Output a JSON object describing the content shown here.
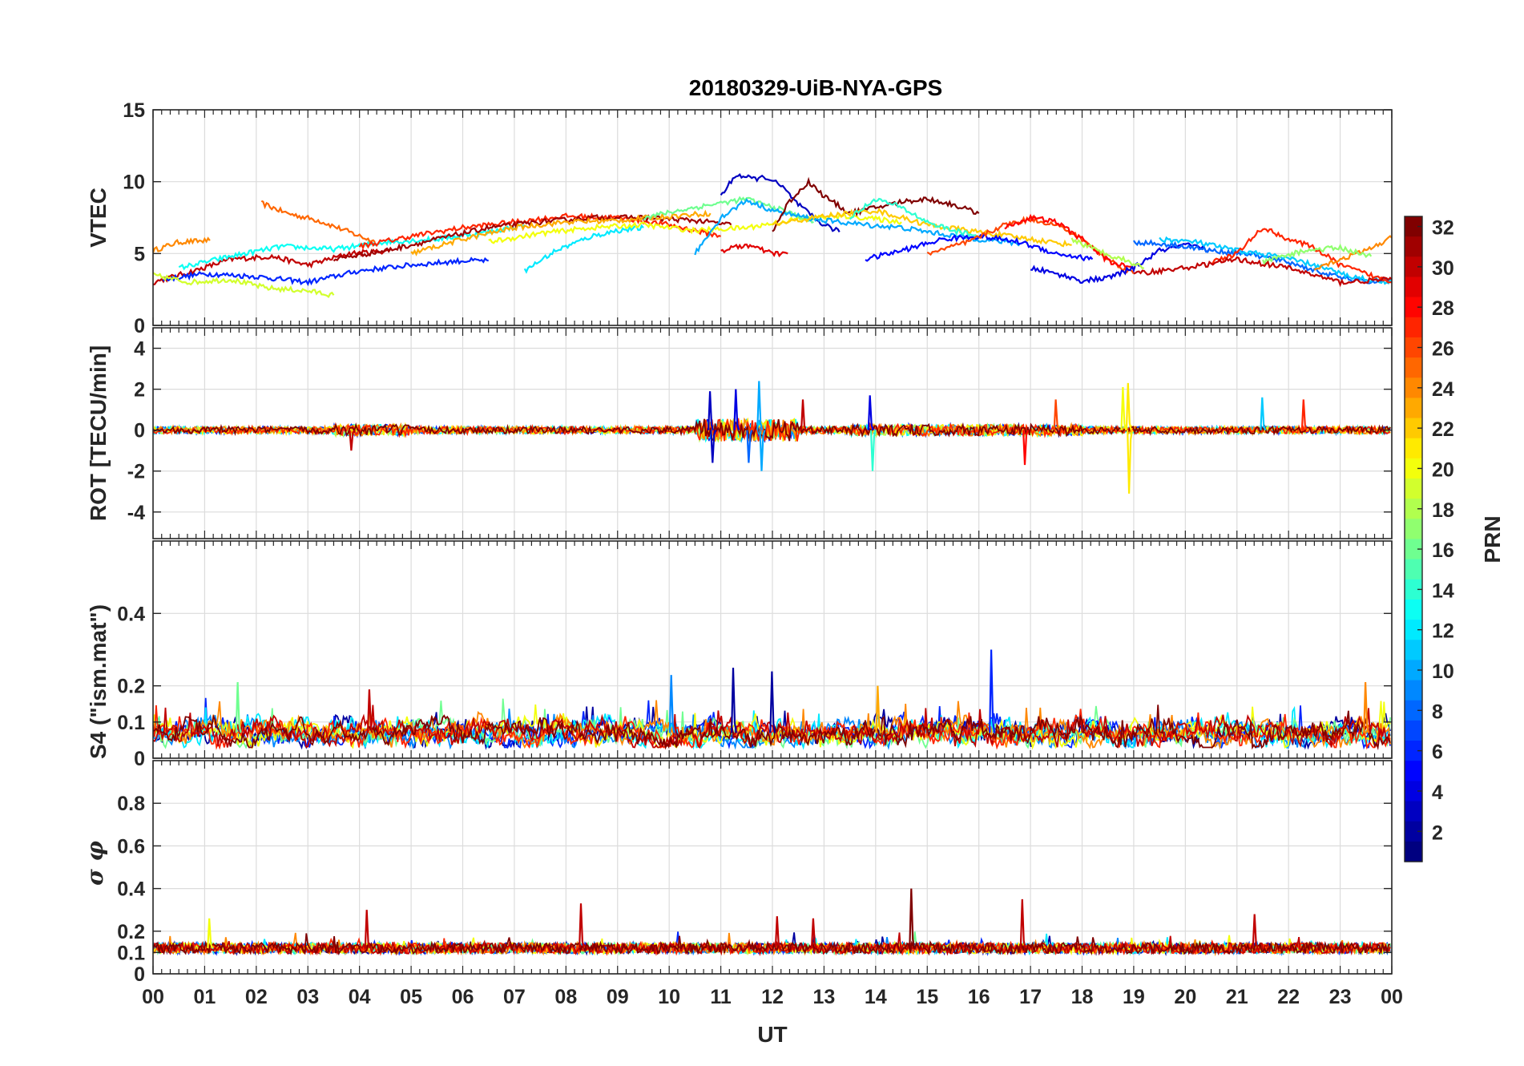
{
  "chart_data": [
    {
      "type": "line",
      "title": "20180329-UiB-NYA-GPS",
      "ylabel": "VTEC",
      "ylim": [
        0,
        15
      ],
      "yticks": [
        0,
        5,
        10,
        15
      ],
      "xlim": [
        0,
        24
      ],
      "xticks": [
        "00",
        "01",
        "02",
        "03",
        "04",
        "05",
        "06",
        "07",
        "08",
        "09",
        "10",
        "11",
        "12",
        "13",
        "14",
        "15",
        "16",
        "17",
        "18",
        "19",
        "20",
        "21",
        "22",
        "23",
        "00"
      ],
      "grid": true,
      "series_encoding": "one line per GPS satellite PRN, colored by PRN",
      "series": [
        {
          "prn": 24,
          "x": [
            0,
            0.5,
            1.1
          ],
          "y": [
            5.2,
            5.8,
            5.9
          ]
        },
        {
          "prn": 25,
          "x": [
            2.1,
            2.6,
            3.2,
            3.8,
            4.3
          ],
          "y": [
            8.5,
            7.8,
            7.3,
            6.5,
            5.8
          ]
        },
        {
          "prn": 30,
          "x": [
            0,
            0.8,
            1.5,
            2.3,
            3.0,
            3.8,
            4.6
          ],
          "y": [
            3.0,
            3.8,
            4.6,
            4.8,
            4.2,
            5.0,
            5.2
          ]
        },
        {
          "prn": 6,
          "x": [
            0.2,
            1.0,
            2.0,
            3.0,
            4.0,
            5.0,
            6.0,
            6.5
          ],
          "y": [
            3.2,
            3.6,
            3.4,
            3.0,
            3.8,
            4.2,
            4.5,
            4.5
          ]
        },
        {
          "prn": 19,
          "x": [
            0,
            0.7,
            1.5,
            2.2,
            3.0,
            3.5
          ],
          "y": [
            3.5,
            3.0,
            3.2,
            2.6,
            2.4,
            2.1
          ]
        },
        {
          "prn": 13,
          "x": [
            0.5,
            1.5,
            2.5,
            3.5,
            4.5,
            5.5,
            6.5,
            7.2
          ],
          "y": [
            4.0,
            4.8,
            5.5,
            5.3,
            5.8,
            6.0,
            6.5,
            7.0
          ]
        },
        {
          "prn": 27,
          "x": [
            4.0,
            5.0,
            6.0,
            7.0,
            8.0,
            9.0,
            10.0,
            11.0
          ],
          "y": [
            5.5,
            6.2,
            6.8,
            7.2,
            7.6,
            7.5,
            7.0,
            6.2
          ]
        },
        {
          "prn": 31,
          "x": [
            3.5,
            4.5,
            5.5,
            6.5,
            7.5,
            8.5,
            9.5,
            10.5,
            11.2
          ],
          "y": [
            4.6,
            5.2,
            6.0,
            6.8,
            7.2,
            7.5,
            7.5,
            7.3,
            7.0
          ]
        },
        {
          "prn": 23,
          "x": [
            5.0,
            6.0,
            7.0,
            8.0,
            9.0,
            10.0,
            10.8
          ],
          "y": [
            5.0,
            6.0,
            6.8,
            7.2,
            7.3,
            7.6,
            7.8
          ]
        },
        {
          "prn": 12,
          "x": [
            7.2,
            7.8,
            8.5,
            9.0,
            9.5
          ],
          "y": [
            3.8,
            5.2,
            6.2,
            6.6,
            6.8
          ]
        },
        {
          "prn": 20,
          "x": [
            6.5,
            7.5,
            8.5,
            9.5,
            10.5,
            11.5,
            12.5,
            13.5,
            14.5
          ],
          "y": [
            5.8,
            6.4,
            6.8,
            7.0,
            6.6,
            6.8,
            7.4,
            7.6,
            7.2
          ]
        },
        {
          "prn": 16,
          "x": [
            9.5,
            10.2,
            10.8,
            11.5,
            12.2,
            12.8
          ],
          "y": [
            7.5,
            8.0,
            8.4,
            8.8,
            8.0,
            7.2
          ]
        },
        {
          "prn": 3,
          "x": [
            11.0,
            11.3,
            11.6,
            11.9,
            12.2,
            12.5,
            12.9,
            13.3
          ],
          "y": [
            9.0,
            10.5,
            10.2,
            10.3,
            9.6,
            8.4,
            7.2,
            6.5
          ]
        },
        {
          "prn": 10,
          "x": [
            10.5,
            11.0,
            11.5,
            12.0,
            12.5,
            13.0,
            13.8,
            14.5,
            15.2,
            16.0,
            16.8
          ],
          "y": [
            5.0,
            7.5,
            8.7,
            8.0,
            7.6,
            7.3,
            7.0,
            6.8,
            6.4,
            6.0,
            5.7
          ]
        },
        {
          "prn": 32,
          "x": [
            12.0,
            12.3,
            12.7,
            13.0,
            13.5,
            14.0,
            14.5,
            15.0,
            15.5,
            16.0
          ],
          "y": [
            6.5,
            8.5,
            10.0,
            9.0,
            7.8,
            8.2,
            8.6,
            8.8,
            8.4,
            7.8
          ]
        },
        {
          "prn": 29,
          "x": [
            11.0,
            11.5,
            12.0,
            12.3
          ],
          "y": [
            5.2,
            5.6,
            5.0,
            5.0
          ]
        },
        {
          "prn": 22,
          "x": [
            12.0,
            13.0,
            14.0,
            15.0,
            16.0,
            17.0,
            17.8
          ],
          "y": [
            7.0,
            7.6,
            8.0,
            7.0,
            6.5,
            6.0,
            5.6
          ]
        },
        {
          "prn": 14,
          "x": [
            13.5,
            14.0,
            14.5,
            15.0,
            15.5,
            16.0
          ],
          "y": [
            7.5,
            8.8,
            8.2,
            7.2,
            6.6,
            6.2
          ]
        },
        {
          "prn": 5,
          "x": [
            13.8,
            14.5,
            15.3,
            16.0,
            16.8,
            17.5,
            18.2
          ],
          "y": [
            4.6,
            5.2,
            6.0,
            6.2,
            5.8,
            5.0,
            4.6
          ]
        },
        {
          "prn": 26,
          "x": [
            15.0,
            15.8,
            16.5,
            17.0,
            17.5,
            18.0,
            18.5,
            19.0
          ],
          "y": [
            5.0,
            5.8,
            7.0,
            7.4,
            7.0,
            6.0,
            4.6,
            3.6
          ]
        },
        {
          "prn": 28,
          "x": [
            16.5,
            17.0,
            17.5,
            18.0,
            18.5,
            19.0
          ],
          "y": [
            6.8,
            7.5,
            7.2,
            6.0,
            4.5,
            3.9
          ]
        },
        {
          "prn": 4,
          "x": [
            17.0,
            17.5,
            18.0,
            18.5,
            19.0,
            19.5,
            20.0,
            20.5
          ],
          "y": [
            4.0,
            3.6,
            3.1,
            3.3,
            4.0,
            5.2,
            5.6,
            5.2
          ]
        },
        {
          "prn": 18,
          "x": [
            17.8,
            18.3,
            18.8,
            19.2
          ],
          "y": [
            6.0,
            5.2,
            4.6,
            4.0
          ]
        },
        {
          "prn": 8,
          "x": [
            19.0,
            19.8,
            20.5,
            21.2,
            22.0,
            22.8,
            23.5,
            24.0
          ],
          "y": [
            5.8,
            5.6,
            5.2,
            5.0,
            4.4,
            3.5,
            3.0,
            3.2
          ]
        },
        {
          "prn": 11,
          "x": [
            19.5,
            20.2,
            21.0,
            21.8,
            22.5,
            23.2,
            24.0
          ],
          "y": [
            6.0,
            5.8,
            5.2,
            4.8,
            4.2,
            3.4,
            3.0
          ]
        },
        {
          "prn": 27,
          "x": [
            20.5,
            21.0,
            21.5,
            22.0,
            22.5,
            23.0,
            23.5,
            24.0
          ],
          "y": [
            4.4,
            5.0,
            6.8,
            6.0,
            5.4,
            4.2,
            3.6,
            3.0
          ]
        },
        {
          "prn": 24,
          "x": [
            22.5,
            23.0,
            23.5,
            24.0
          ],
          "y": [
            4.0,
            4.6,
            5.2,
            6.1
          ]
        },
        {
          "prn": 17,
          "x": [
            21.5,
            22.3,
            23.0,
            23.6
          ],
          "y": [
            4.4,
            5.2,
            5.4,
            4.8
          ]
        },
        {
          "prn": 30,
          "x": [
            19.0,
            20.0,
            21.0,
            22.0,
            23.0,
            24.0
          ],
          "y": [
            3.6,
            4.0,
            4.6,
            4.0,
            3.0,
            3.2
          ]
        }
      ]
    },
    {
      "type": "line",
      "ylabel": "ROT [TECU/min]",
      "ylim": [
        -5.3,
        5.0
      ],
      "yticks": [
        -4,
        -2,
        0,
        2,
        4
      ],
      "xlim": [
        0,
        24
      ],
      "grid": true,
      "series_encoding": "noisy traces near 0 for all PRNs",
      "baseline": 0,
      "spikes": [
        {
          "x": 3.85,
          "y": -1.0,
          "prn": 30
        },
        {
          "x": 10.8,
          "y": 1.9,
          "prn": 3
        },
        {
          "x": 10.85,
          "y": -1.6,
          "prn": 3
        },
        {
          "x": 11.3,
          "y": 2.0,
          "prn": 4
        },
        {
          "x": 11.55,
          "y": -1.6,
          "prn": 8
        },
        {
          "x": 11.75,
          "y": 2.4,
          "prn": 10
        },
        {
          "x": 11.8,
          "y": -2.0,
          "prn": 10
        },
        {
          "x": 12.6,
          "y": 1.5,
          "prn": 30
        },
        {
          "x": 13.9,
          "y": 1.7,
          "prn": 4
        },
        {
          "x": 13.95,
          "y": -2.0,
          "prn": 14
        },
        {
          "x": 16.9,
          "y": -1.7,
          "prn": 28
        },
        {
          "x": 17.5,
          "y": 1.5,
          "prn": 26
        },
        {
          "x": 18.8,
          "y": 2.1,
          "prn": 20
        },
        {
          "x": 18.9,
          "y": 2.3,
          "prn": 21
        },
        {
          "x": 18.92,
          "y": -3.1,
          "prn": 21
        },
        {
          "x": 21.5,
          "y": 1.6,
          "prn": 11
        },
        {
          "x": 22.3,
          "y": 1.5,
          "prn": 27
        }
      ]
    },
    {
      "type": "line",
      "ylabel": "S4 (\"ism.mat\")",
      "ylim": [
        0,
        0.6
      ],
      "yticks": [
        0,
        0.1,
        0.2,
        0.4
      ],
      "xlim": [
        0,
        24
      ],
      "grid": true,
      "baseline": 0.07,
      "spikes": [
        {
          "x": 1.65,
          "y": 0.21,
          "prn": 16
        },
        {
          "x": 4.2,
          "y": 0.19,
          "prn": 30
        },
        {
          "x": 10.05,
          "y": 0.23,
          "prn": 9
        },
        {
          "x": 11.25,
          "y": 0.25,
          "prn": 2
        },
        {
          "x": 12.0,
          "y": 0.24,
          "prn": 2
        },
        {
          "x": 14.05,
          "y": 0.2,
          "prn": 23
        },
        {
          "x": 16.25,
          "y": 0.3,
          "prn": 6
        },
        {
          "x": 23.5,
          "y": 0.21,
          "prn": 24
        }
      ]
    },
    {
      "type": "line",
      "ylabel": "σ φ",
      "xlabel": "UT",
      "ylim": [
        0,
        1.0
      ],
      "yticks": [
        0,
        0.1,
        0.2,
        0.4,
        0.6,
        0.8
      ],
      "xlim": [
        0,
        24
      ],
      "grid": true,
      "baseline": 0.12,
      "spikes": [
        {
          "x": 1.1,
          "y": 0.26,
          "prn": 20
        },
        {
          "x": 4.15,
          "y": 0.3,
          "prn": 30
        },
        {
          "x": 8.3,
          "y": 0.33,
          "prn": 30
        },
        {
          "x": 12.1,
          "y": 0.27,
          "prn": 30
        },
        {
          "x": 12.8,
          "y": 0.26,
          "prn": 30
        },
        {
          "x": 14.7,
          "y": 0.4,
          "prn": 32
        },
        {
          "x": 16.85,
          "y": 0.35,
          "prn": 30
        },
        {
          "x": 21.35,
          "y": 0.28,
          "prn": 30
        }
      ]
    }
  ],
  "colorbar": {
    "label": "PRN",
    "range": [
      1,
      32
    ],
    "ticks": [
      2,
      4,
      6,
      8,
      10,
      12,
      14,
      16,
      18,
      20,
      22,
      24,
      26,
      28,
      30,
      32
    ],
    "colormap": "jet"
  }
}
